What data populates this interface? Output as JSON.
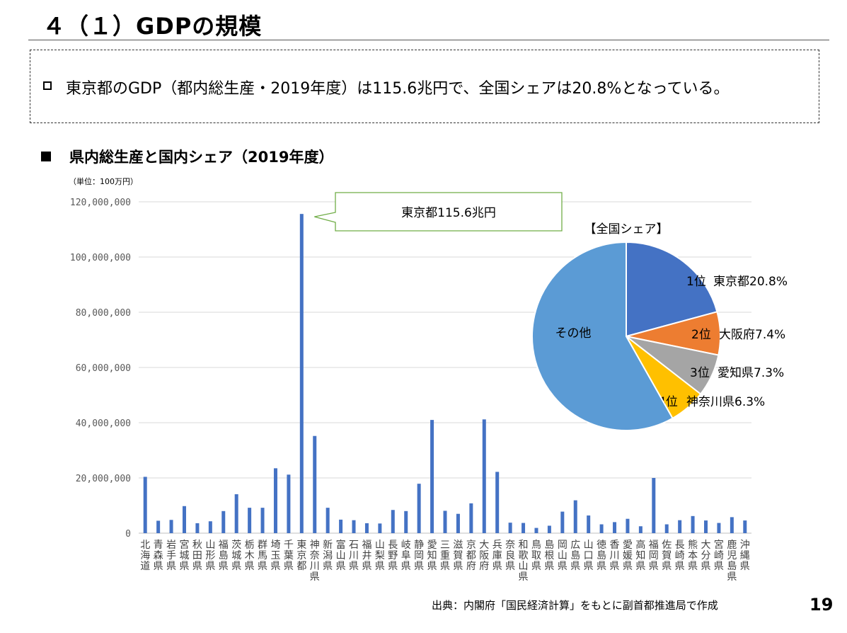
{
  "title": "４（１）GDPの規模",
  "summary": {
    "text": "東京都のGDP（都内総生産・2019年度）は115.6兆円で、全国シェアは20.8%となっている。"
  },
  "section_heading": "県内総生産と国内シェア（2019年度）",
  "unit_label": "（単位：100万円）",
  "chart_data": [
    {
      "type": "bar",
      "ylim": [
        0,
        120000000
      ],
      "yticks": [
        "0",
        "20,000,000",
        "40,000,000",
        "60,000,000",
        "80,000,000",
        "100,000,000",
        "120,000,000"
      ],
      "grid": true,
      "color": "#4472C4",
      "categories": [
        "北海道",
        "青森県",
        "岩手県",
        "宮城県",
        "秋田県",
        "山形県",
        "福島県",
        "茨城県",
        "栃木県",
        "群馬県",
        "埼玉県",
        "千葉県",
        "東京都",
        "神奈川県",
        "新潟県",
        "富山県",
        "石川県",
        "福井県",
        "山梨県",
        "長野県",
        "岐阜県",
        "静岡県",
        "愛知県",
        "三重県",
        "滋賀県",
        "京都府",
        "大阪府",
        "兵庫県",
        "奈良県",
        "和歌山県",
        "鳥取県",
        "島根県",
        "岡山県",
        "広島県",
        "山口県",
        "徳島県",
        "香川県",
        "愛媛県",
        "高知県",
        "福岡県",
        "佐賀県",
        "長崎県",
        "熊本県",
        "大分県",
        "宮崎県",
        "鹿児島県",
        "沖縄県"
      ],
      "values": [
        20400000,
        4500000,
        4800000,
        9800000,
        3600000,
        4300000,
        8000000,
        14100000,
        9200000,
        9200000,
        23500000,
        21200000,
        115600000,
        35200000,
        9200000,
        4900000,
        4700000,
        3600000,
        3500000,
        8400000,
        8000000,
        17900000,
        41000000,
        8100000,
        7000000,
        10800000,
        41200000,
        22200000,
        3800000,
        3700000,
        1900000,
        2700000,
        7800000,
        11900000,
        6400000,
        3200000,
        4000000,
        5200000,
        2500000,
        20000000,
        3200000,
        4700000,
        6200000,
        4600000,
        3700000,
        5800000,
        4600000
      ],
      "callout": "東京都115.6兆円"
    },
    {
      "type": "pie",
      "title": "【全国シェア】",
      "slices": [
        {
          "rank": "1位",
          "name": "東京都",
          "label": "東京都20.8%",
          "value": 20.8,
          "color": "#4472C4"
        },
        {
          "rank": "2位",
          "name": "大阪府",
          "label": "大阪府7.4%",
          "value": 7.4,
          "color": "#ED7D31"
        },
        {
          "rank": "3位",
          "name": "愛知県",
          "label": "愛知県7.3%",
          "value": 7.3,
          "color": "#A5A5A5"
        },
        {
          "rank": "4位",
          "name": "神奈川県",
          "label": "神奈川県6.3%",
          "value": 6.3,
          "color": "#FFC000"
        },
        {
          "rank": "",
          "name": "その他",
          "label": "その他",
          "value": 58.2,
          "color": "#5B9BD5"
        }
      ]
    }
  ],
  "source": "出典：内閣府「国民経済計算」をもとに副首都推進局で作成",
  "page_number": "19"
}
